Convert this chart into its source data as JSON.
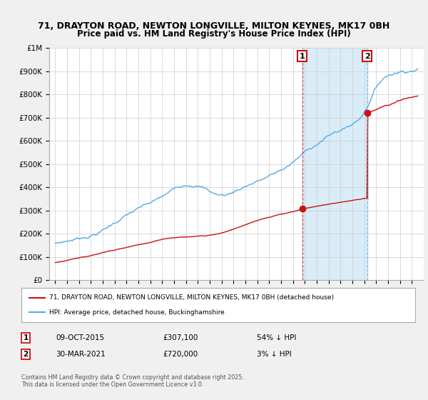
{
  "title_line1": "71, DRAYTON ROAD, NEWTON LONGVILLE, MILTON KEYNES, MK17 0BH",
  "title_line2": "Price paid vs. HM Land Registry's House Price Index (HPI)",
  "ylim": [
    0,
    1000000
  ],
  "yticks": [
    0,
    100000,
    200000,
    300000,
    400000,
    500000,
    600000,
    700000,
    800000,
    900000,
    1000000
  ],
  "ytick_labels": [
    "£0",
    "£100K",
    "£200K",
    "£300K",
    "£400K",
    "£500K",
    "£600K",
    "£700K",
    "£800K",
    "£900K",
    "£1M"
  ],
  "hpi_color": "#5aabdf",
  "price_color": "#cc1111",
  "shade_color": "#d0e8f5",
  "annotation1_date": "09-OCT-2015",
  "annotation1_price": "£307,100",
  "annotation1_hpi": "54% ↓ HPI",
  "annotation1_year": 2015.77,
  "annotation1_value": 307100,
  "annotation2_date": "30-MAR-2021",
  "annotation2_price": "£720,000",
  "annotation2_hpi": "3% ↓ HPI",
  "annotation2_year": 2021.25,
  "annotation2_value": 720000,
  "legend_label1": "71, DRAYTON ROAD, NEWTON LONGVILLE, MILTON KEYNES, MK17 0BH (detached house)",
  "legend_label2": "HPI: Average price, detached house, Buckinghamshire",
  "footer": "Contains HM Land Registry data © Crown copyright and database right 2025.\nThis data is licensed under the Open Government Licence v3.0.",
  "background_color": "#f0f0f0",
  "plot_background": "#ffffff"
}
